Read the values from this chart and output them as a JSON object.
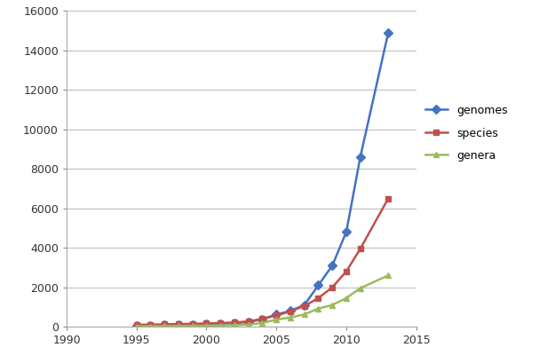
{
  "years": [
    1995,
    1996,
    1997,
    1998,
    1999,
    2000,
    2001,
    2002,
    2003,
    2004,
    2005,
    2006,
    2007,
    2008,
    2009,
    2010,
    2011,
    2013
  ],
  "genomes": [
    50,
    65,
    80,
    95,
    110,
    130,
    155,
    185,
    230,
    380,
    620,
    800,
    1100,
    2100,
    3100,
    4800,
    8600,
    14900
  ],
  "species": [
    100,
    110,
    120,
    135,
    150,
    165,
    185,
    215,
    270,
    400,
    570,
    780,
    1050,
    1450,
    2000,
    2800,
    3950,
    6500
  ],
  "genera": [
    20,
    25,
    30,
    38,
    45,
    55,
    65,
    80,
    100,
    190,
    360,
    470,
    620,
    920,
    1100,
    1450,
    1950,
    2600
  ],
  "xlim": [
    1990,
    2015
  ],
  "ylim": [
    0,
    16000
  ],
  "yticks": [
    0,
    2000,
    4000,
    6000,
    8000,
    10000,
    12000,
    14000,
    16000
  ],
  "xticks": [
    1990,
    1995,
    2000,
    2005,
    2010,
    2015
  ],
  "colors": {
    "genomes": "#4472C4",
    "species": "#C0504D",
    "genera": "#9BBB59"
  },
  "markers": {
    "genomes": "D",
    "species": "s",
    "genera": "^"
  },
  "bg_color": "#FFFFFF",
  "plot_bg_color": "#FFFFFF",
  "grid_color": "#C0C0C0"
}
